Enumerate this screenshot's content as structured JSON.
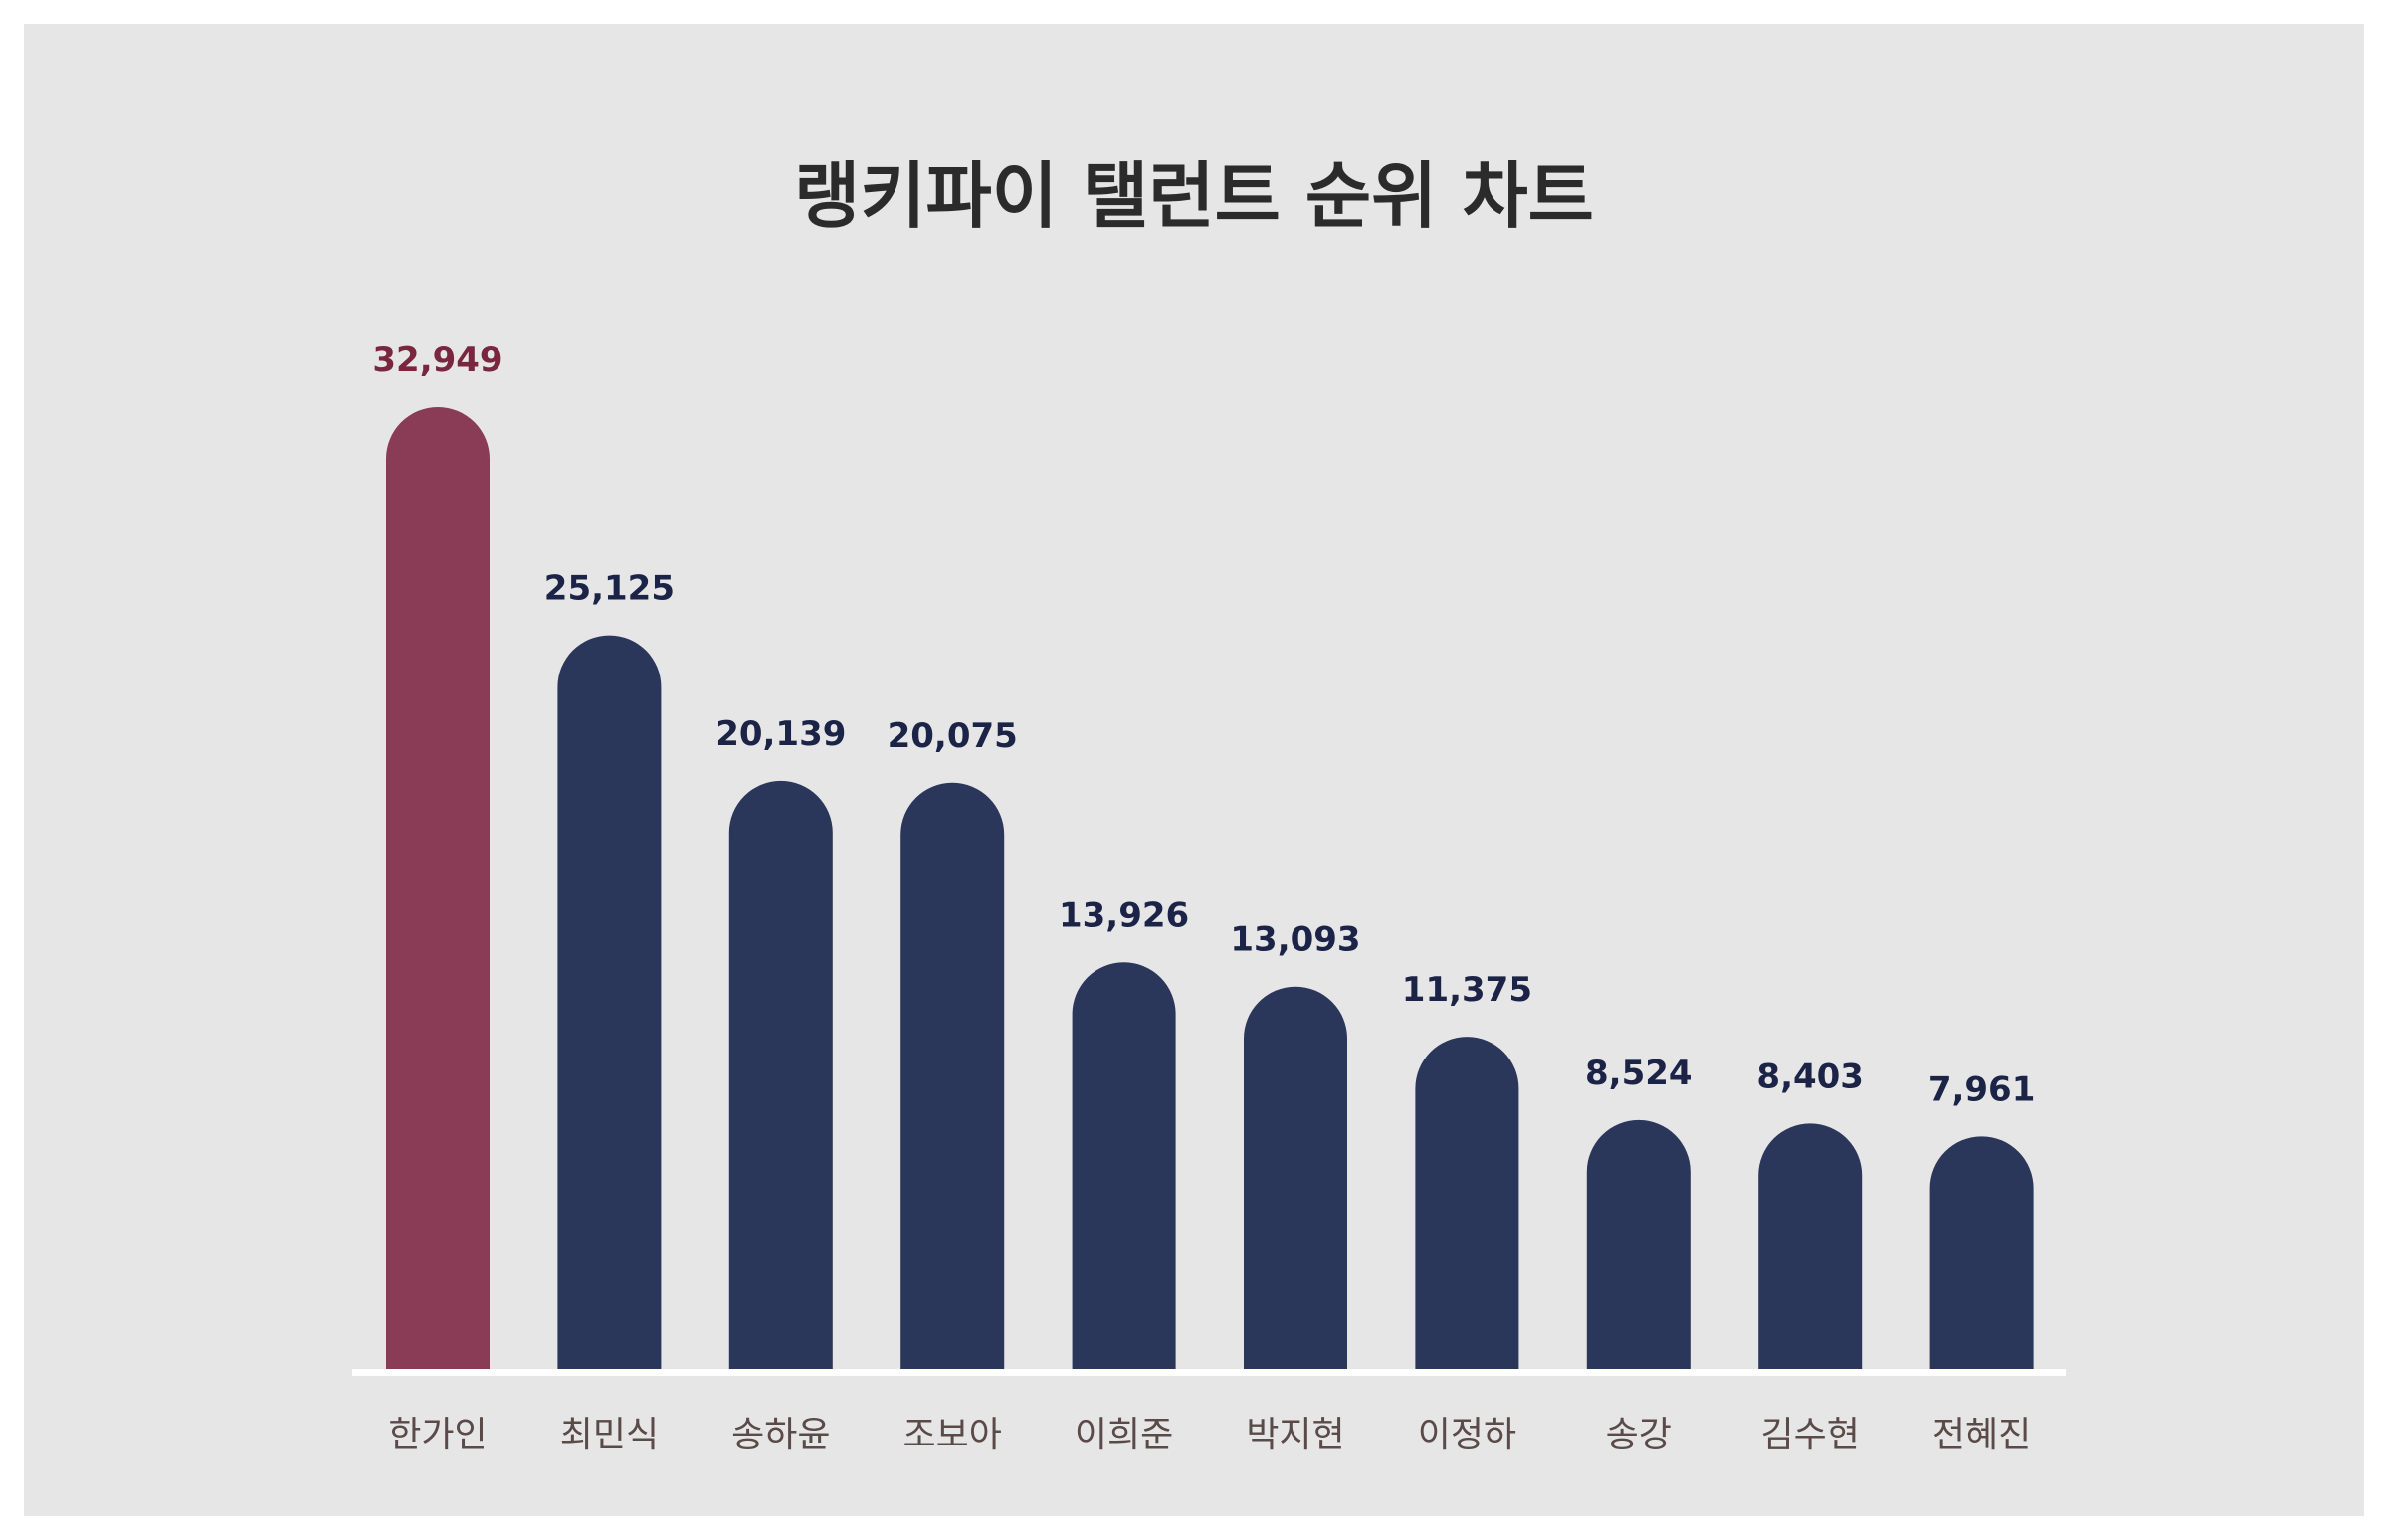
{
  "chart_data": {
    "type": "bar",
    "title": "랭키파이 탤런트 순위 차트",
    "categories": [
      "한가인",
      "최민식",
      "송하윤",
      "조보아",
      "이희준",
      "박지현",
      "이정하",
      "송강",
      "김수현",
      "전혜진"
    ],
    "values": [
      32949,
      25125,
      20139,
      20075,
      13926,
      13093,
      11375,
      8524,
      8403,
      7961
    ],
    "value_labels": [
      "32,949",
      "25,125",
      "20,139",
      "20,075",
      "13,926",
      "13,093",
      "11,375",
      "8,524",
      "8,403",
      "7,961"
    ],
    "xlabel": "",
    "ylabel": "",
    "grid": false,
    "legend": "none",
    "highlight_index": 0,
    "colors": {
      "highlight_bar": "#8a3c56",
      "bar": "#2b365b",
      "highlight_label": "#7a2640",
      "value_label": "#1b2347",
      "category_label": "#5a4a48",
      "background": "#e6e6e6",
      "baseline": "#ffffff"
    }
  }
}
